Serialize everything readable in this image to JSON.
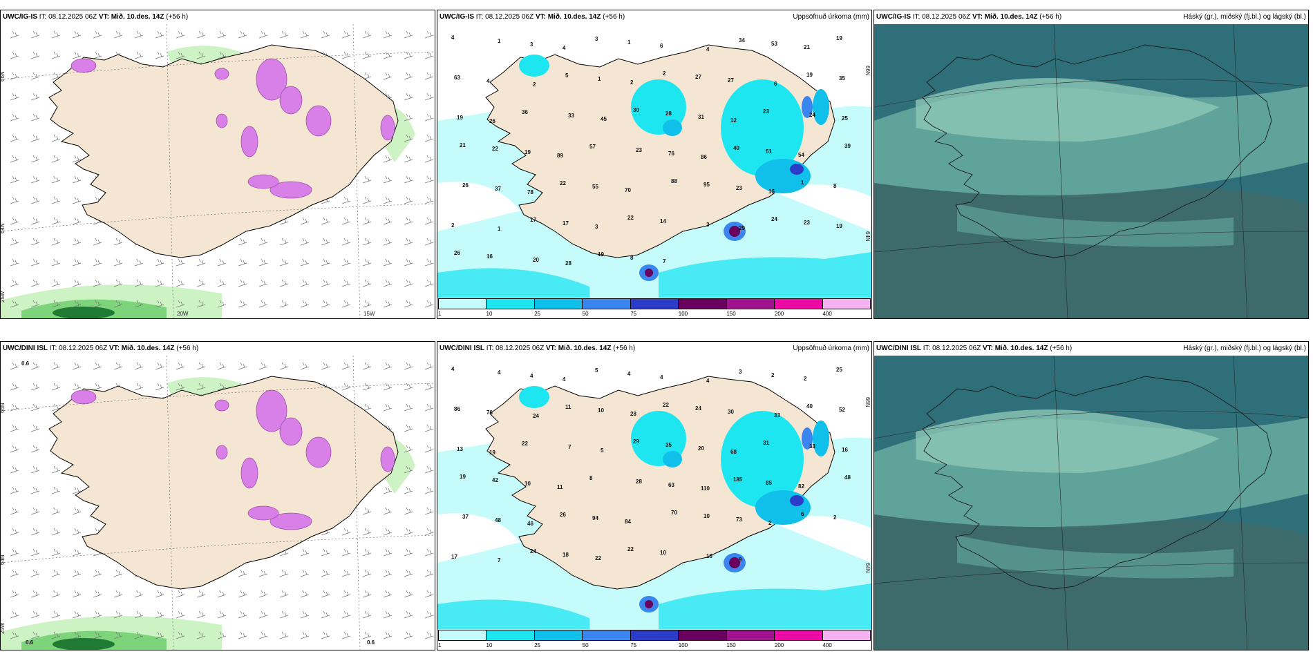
{
  "page": {
    "background": "#ffffff"
  },
  "colors": {
    "land": "#f5e6d3",
    "coast": "#000000",
    "snow_shade": "#d980e8",
    "snow_dark": "#9b4ea8",
    "wind_green_light": "#cdf2c4",
    "wind_green_mid": "#7dd47a",
    "wind_green_dark": "#1f7a34",
    "cloud_low": "#2f6f7a",
    "cloud_mid": "#5fa39a",
    "cloud_high": "#8cc7b5"
  },
  "legend": {
    "ticks": [
      "1",
      "10",
      "25",
      "50",
      "75",
      "100",
      "150",
      "200",
      "400"
    ],
    "colors": [
      "#c6fbfb",
      "#1ee6f0",
      "#10c0ea",
      "#3a86ee",
      "#2b3cc8",
      "#6a005e",
      "#a0138e",
      "#ec0aa6",
      "#f4b3f0"
    ]
  },
  "rows": [
    {
      "model": "UWC/IG-IS",
      "panels": [
        {
          "model": "UWC/IG-IS",
          "it": "08.12.2025 06Z",
          "vt": "Mið. 10.des. 14Z",
          "lead": "(+56 h)",
          "title_right": "",
          "lat_labels": [
            "66N",
            "64N",
            "25W"
          ],
          "lon_labels": [
            "20W",
            "15W"
          ],
          "values": []
        },
        {
          "model": "UWC/IG-IS",
          "it": "08.12.2025 06Z",
          "vt": "Mið. 10.des. 14Z",
          "lead": "(+56 h)",
          "title_right": "Uppsöfnuð úrkoma (mm)",
          "lat_labels": [
            "66N",
            "64N"
          ],
          "lon_labels": [],
          "values": [
            "4",
            "1",
            "3",
            "4",
            "3",
            "1",
            "6",
            "4",
            "34",
            "53",
            "21",
            "19",
            "63",
            "4",
            "2",
            "5",
            "1",
            "2",
            "2",
            "27",
            "27",
            "6",
            "19",
            "35",
            "19",
            "26",
            "36",
            "33",
            "45",
            "30",
            "28",
            "31",
            "12",
            "23",
            "24",
            "25",
            "21",
            "22",
            "19",
            "89",
            "57",
            "23",
            "76",
            "86",
            "40",
            "51",
            "54",
            "39",
            "26",
            "37",
            "78",
            "22",
            "55",
            "70",
            "88",
            "95",
            "23",
            "16",
            "1",
            "8",
            "2",
            "1",
            "17",
            "17",
            "3",
            "22",
            "14",
            "3",
            "29",
            "24",
            "23",
            "19",
            "26",
            "16",
            "20",
            "28",
            "19",
            "8",
            "7"
          ]
        },
        {
          "model": "UWC/IG-IS",
          "it": "08.12.2025 06Z",
          "vt": "Mið. 10.des. 14Z",
          "lead": "(+56 h)",
          "title_right": "Háský (gr.), miðský (fj.bl.) og lágský (bl.)",
          "lat_labels": [],
          "lon_labels": [],
          "values": []
        }
      ]
    },
    {
      "model": "UWC/DINI ISL",
      "panels": [
        {
          "model": "UWC/DINI ISL",
          "it": "08.12.2025 06Z",
          "vt": "Mið. 10.des. 14Z",
          "lead": "(+56 h)",
          "title_right": "",
          "lat_labels": [
            "66N",
            "64N",
            "25W"
          ],
          "lon_labels": [],
          "values": [
            "0.6",
            "0.6",
            "0.6"
          ]
        },
        {
          "model": "UWC/DINI ISL",
          "it": "08.12.2025 06Z",
          "vt": "Mið. 10.des. 14Z",
          "lead": "(+56 h)",
          "title_right": "Uppsöfnuð úrkoma (mm)",
          "lat_labels": [
            "66N",
            "64N"
          ],
          "lon_labels": [],
          "values": [
            "4",
            "4",
            "4",
            "4",
            "5",
            "4",
            "4",
            "4",
            "3",
            "2",
            "2",
            "25",
            "86",
            "76",
            "24",
            "11",
            "10",
            "28",
            "22",
            "24",
            "30",
            "33",
            "40",
            "52",
            "13",
            "19",
            "22",
            "7",
            "5",
            "29",
            "35",
            "20",
            "68",
            "31",
            "33",
            "16",
            "19",
            "42",
            "10",
            "11",
            "8",
            "28",
            "63",
            "110",
            "185",
            "85",
            "82",
            "48",
            "37",
            "48",
            "46",
            "26",
            "94",
            "84",
            "70",
            "10",
            "73",
            "2",
            "6",
            "2",
            "17",
            "7",
            "24",
            "18",
            "22",
            "22",
            "10",
            "10",
            "9"
          ]
        },
        {
          "model": "UWC/DINI ISL",
          "it": "08.12.2025 06Z",
          "vt": "Mið. 10.des. 14Z",
          "lead": "(+56 h)",
          "title_right": "Háský (gr.), miðský (fj.bl.) og lágský (bl.)",
          "lat_labels": [],
          "lon_labels": [],
          "values": []
        }
      ]
    }
  ]
}
